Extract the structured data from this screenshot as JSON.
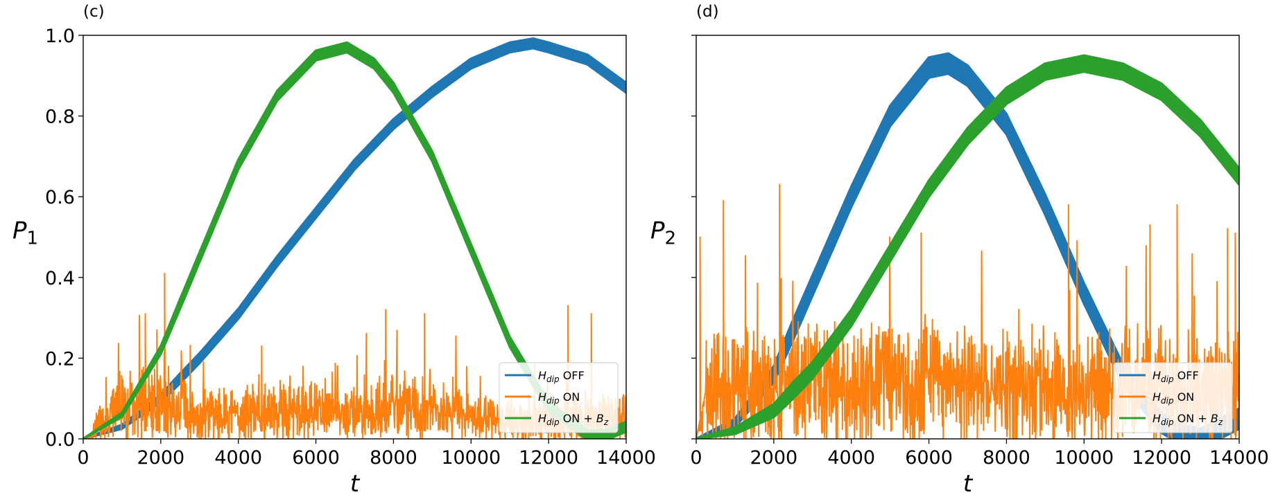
{
  "chart_data": [
    {
      "type": "line",
      "panel_label": "(c)",
      "xlabel": "t",
      "ylabel": "P",
      "ylabel_sub": "1",
      "xlim": [
        0,
        14000
      ],
      "ylim": [
        0,
        1.0
      ],
      "x_ticks": [
        "0",
        "2000",
        "4000",
        "6000",
        "8000",
        "10000",
        "12000",
        "14000"
      ],
      "y_ticks": [
        "0.0",
        "0.2",
        "0.4",
        "0.6",
        "0.8",
        "1.0"
      ],
      "legend_position": "lower right",
      "series": [
        {
          "legend_main": "H",
          "legend_sub": "dip",
          "legend_rest": " OFF",
          "color": "#1f77b4",
          "x": [
            0,
            1000,
            2000,
            3000,
            4000,
            5000,
            6000,
            7000,
            8000,
            9000,
            10000,
            11000,
            11600,
            12000,
            13000,
            14000
          ],
          "y": [
            0.0,
            0.03,
            0.1,
            0.2,
            0.31,
            0.44,
            0.56,
            0.68,
            0.78,
            0.86,
            0.93,
            0.97,
            0.98,
            0.97,
            0.94,
            0.87
          ],
          "wiggle": 0.012
        },
        {
          "legend_main": "H",
          "legend_sub": "dip",
          "legend_rest": " ON",
          "color": "#ff7f0e",
          "x": [
            0,
            1000,
            2000,
            3000,
            4000,
            5000,
            6000,
            7000,
            8000,
            9000,
            10000,
            11000,
            12000,
            13000,
            14000
          ],
          "y": [
            0.0,
            0.08,
            0.09,
            0.06,
            0.06,
            0.07,
            0.07,
            0.06,
            0.08,
            0.07,
            0.05,
            0.04,
            0.04,
            0.05,
            0.05
          ],
          "noise": {
            "scale": 0.07,
            "max": 0.4,
            "seed": 7
          },
          "spikes": [
            [
              1600,
              0.31
            ],
            [
              2100,
              0.41
            ],
            [
              1900,
              0.27
            ],
            [
              4600,
              0.23
            ],
            [
              7800,
              0.32
            ],
            [
              8800,
              0.31
            ],
            [
              12500,
              0.33
            ],
            [
              13100,
              0.31
            ]
          ]
        },
        {
          "legend_main": "H",
          "legend_sub": "dip",
          "legend_rest": " ON + ",
          "legend_extra_main": "B",
          "legend_extra_sub": "z",
          "color": "#2ca02c",
          "x": [
            0,
            1000,
            2000,
            3000,
            4000,
            5000,
            6000,
            6800,
            7500,
            8000,
            9000,
            10000,
            11000,
            12000,
            13000,
            13500,
            14000
          ],
          "y": [
            0.0,
            0.06,
            0.22,
            0.45,
            0.68,
            0.85,
            0.95,
            0.97,
            0.93,
            0.87,
            0.7,
            0.47,
            0.24,
            0.08,
            0.01,
            0.01,
            0.03
          ],
          "wiggle": 0.012
        }
      ]
    },
    {
      "type": "line",
      "panel_label": "(d)",
      "xlabel": "t",
      "ylabel": "P",
      "ylabel_sub": "2",
      "xlim": [
        0,
        14000
      ],
      "ylim": [
        0,
        1.0
      ],
      "x_ticks": [
        "0",
        "2000",
        "4000",
        "6000",
        "8000",
        "10000",
        "12000",
        "14000"
      ],
      "y_ticks": [],
      "legend_position": "lower right",
      "series": [
        {
          "legend_main": "H",
          "legend_sub": "dip",
          "legend_rest": " OFF",
          "color": "#1f77b4",
          "x": [
            0,
            1000,
            2000,
            3000,
            4000,
            5000,
            6000,
            6500,
            7000,
            8000,
            9000,
            10000,
            11000,
            12000,
            12500,
            13000,
            14000
          ],
          "y": [
            0.0,
            0.04,
            0.16,
            0.38,
            0.6,
            0.8,
            0.92,
            0.93,
            0.9,
            0.78,
            0.58,
            0.36,
            0.16,
            0.04,
            0.01,
            0.0,
            0.05
          ],
          "wiggle": 0.025
        },
        {
          "legend_main": "H",
          "legend_sub": "dip",
          "legend_rest": " ON",
          "color": "#ff7f0e",
          "x": [
            0,
            2000,
            4000,
            6000,
            8000,
            10000,
            12000,
            14000
          ],
          "y": [
            0.12,
            0.13,
            0.13,
            0.14,
            0.13,
            0.13,
            0.12,
            0.12
          ],
          "noise": {
            "scale": 0.14,
            "max": 0.5,
            "seed": 13
          },
          "spikes": [
            [
              2150,
              0.63
            ],
            [
              100,
              0.5
            ],
            [
              700,
              0.59
            ],
            [
              5800,
              0.51
            ],
            [
              9600,
              0.58
            ],
            [
              11700,
              0.53
            ],
            [
              12400,
              0.58
            ],
            [
              13700,
              0.52
            ],
            [
              13900,
              0.51
            ]
          ]
        },
        {
          "legend_main": "H",
          "legend_sub": "dip",
          "legend_rest": " ON + ",
          "legend_extra_main": "B",
          "legend_extra_sub": "z",
          "color": "#2ca02c",
          "x": [
            0,
            1000,
            2000,
            3000,
            4000,
            5000,
            6000,
            7000,
            8000,
            9000,
            10000,
            11000,
            12000,
            13000,
            14000
          ],
          "y": [
            0.0,
            0.02,
            0.07,
            0.17,
            0.3,
            0.46,
            0.62,
            0.75,
            0.85,
            0.91,
            0.93,
            0.91,
            0.86,
            0.77,
            0.65
          ],
          "wiggle": 0.02
        }
      ]
    }
  ]
}
